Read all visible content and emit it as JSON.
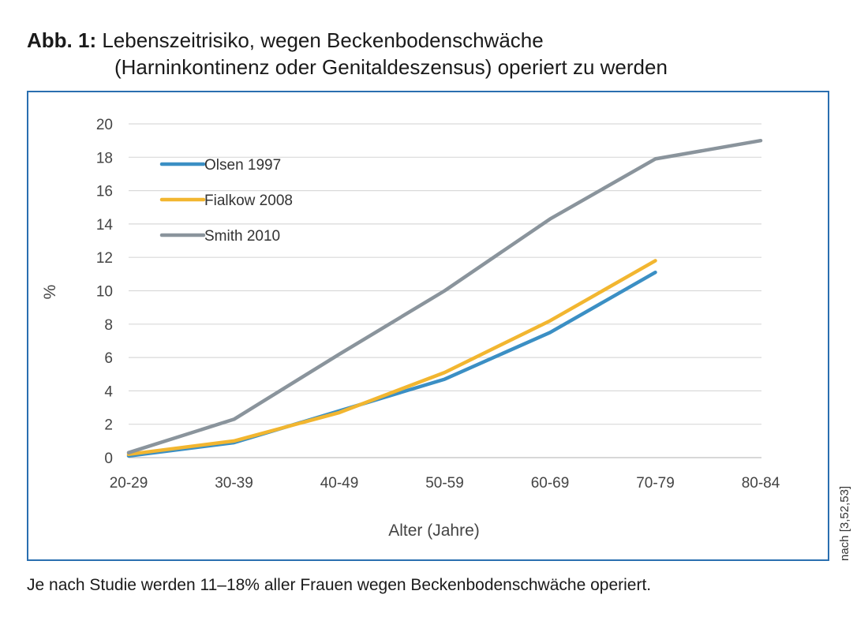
{
  "figure": {
    "label": "Abb. 1:",
    "title_line1": "Lebenszeitrisiko, wegen Beckenbodenschwäche",
    "title_line2": "(Harninkontinenz oder Genitaldeszensus) operiert zu werden",
    "caption": "Je nach Studie werden 11–18% aller Frauen wegen Beckenbodenschwäche operiert.",
    "source": "nach [3,52,53]",
    "frame_color": "#2a6fb0"
  },
  "chart_data": {
    "type": "line",
    "title": "",
    "xlabel": "Alter (Jahre)",
    "ylabel": "%",
    "categories": [
      "20-29",
      "30-39",
      "40-49",
      "50-59",
      "60-69",
      "70-79",
      "80-84"
    ],
    "ylim": [
      0,
      20
    ],
    "yticks": [
      "0",
      "2",
      "4",
      "6",
      "8",
      "10",
      "12",
      "14",
      "16",
      "18",
      "20"
    ],
    "grid": "horizontal",
    "legend_position": "top-left",
    "series": [
      {
        "name": "Olsen 1997",
        "color": "#3b8fc4",
        "values": [
          0.1,
          0.9,
          2.8,
          4.7,
          7.5,
          11.1,
          null
        ]
      },
      {
        "name": "Fialkow 2008",
        "color": "#f2b630",
        "values": [
          0.2,
          1.0,
          2.7,
          5.1,
          8.2,
          11.8,
          null
        ]
      },
      {
        "name": "Smith 2010",
        "color": "#8a949c",
        "values": [
          0.3,
          2.3,
          6.2,
          10.0,
          14.3,
          17.9,
          19.0
        ]
      }
    ]
  }
}
